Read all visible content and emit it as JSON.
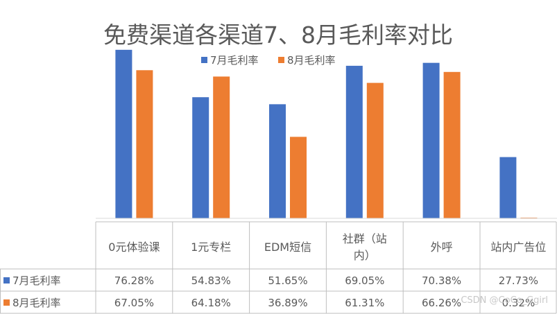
{
  "chart_data": {
    "type": "bar",
    "title": "免费渠道各渠道7、8月毛利率对比",
    "categories": [
      "0元体验课",
      "1元专栏",
      "EDM短信",
      "社群（站内）",
      "外呼",
      "站内广告位"
    ],
    "category_lines": [
      [
        "0元体验课"
      ],
      [
        "1元专栏"
      ],
      [
        "EDM短信"
      ],
      [
        "社群（站",
        "内）"
      ],
      [
        "外呼"
      ],
      [
        "站内广告位"
      ]
    ],
    "series": [
      {
        "name": "7月毛利率",
        "color": "#4472C4",
        "values": [
          76.28,
          54.83,
          51.65,
          69.05,
          70.38,
          27.73
        ],
        "labels": [
          "76.28%",
          "54.83%",
          "51.65%",
          "69.05%",
          "70.38%",
          "27.73%"
        ]
      },
      {
        "name": "8月毛利率",
        "color": "#ED7D31",
        "values": [
          67.05,
          64.18,
          36.89,
          61.31,
          66.26,
          0.32
        ],
        "labels": [
          "67.05%",
          "64.18%",
          "36.89%",
          "61.31%",
          "66.26%",
          "0.32%"
        ]
      }
    ],
    "ylim": [
      0,
      80
    ],
    "legend_position": "top-center",
    "data_table": true,
    "grid": false
  },
  "watermark": "CSDN @CoCo_Ggirl"
}
